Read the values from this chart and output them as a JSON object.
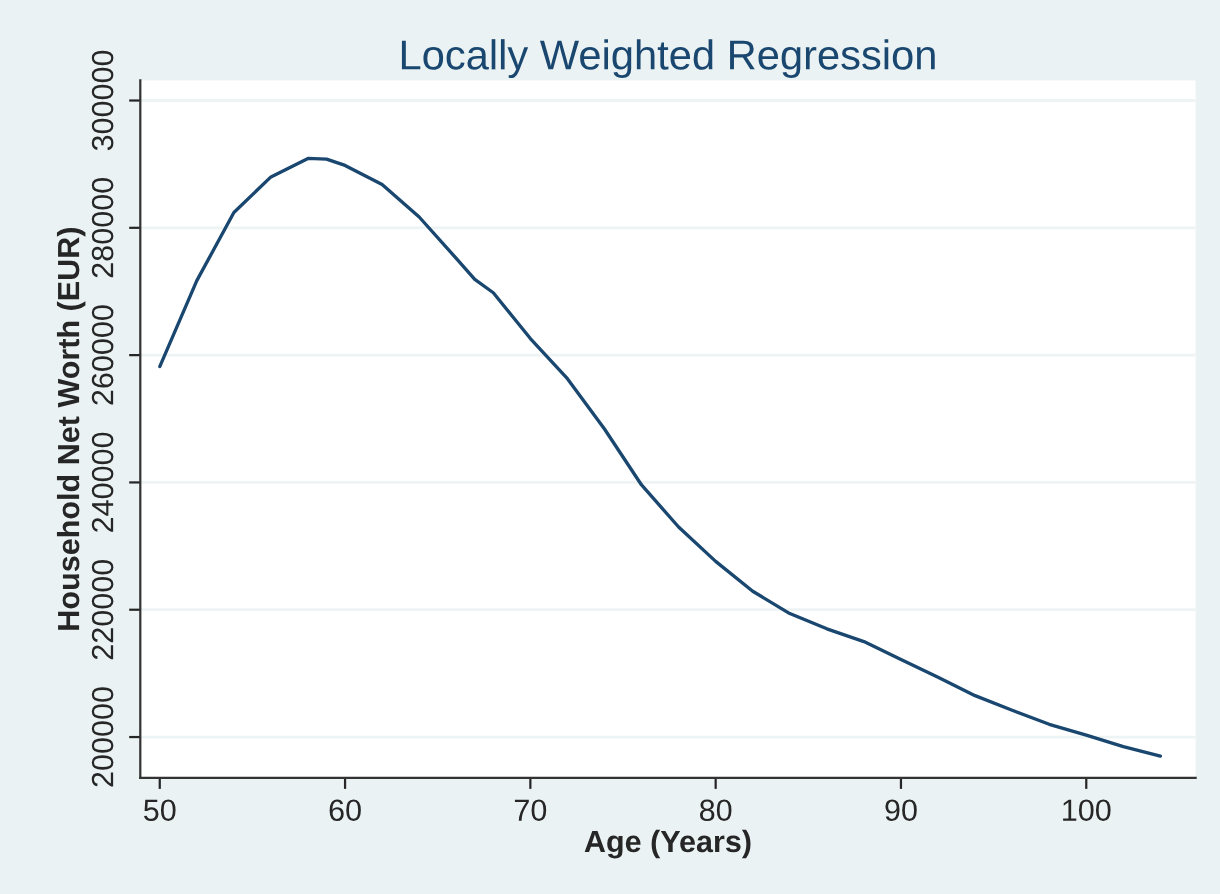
{
  "chart_data": {
    "type": "line",
    "title": "Locally Weighted Regression",
    "xlabel": "Age (Years)",
    "ylabel": "Household Net Worth (EUR)",
    "x": [
      50,
      52,
      54,
      56,
      58,
      59,
      60,
      62,
      64,
      66,
      67,
      68,
      70,
      72,
      74,
      76,
      78,
      80,
      82,
      84,
      86,
      88,
      90,
      92,
      94,
      96,
      98,
      100,
      102,
      104
    ],
    "series": [
      {
        "color": "#1a476f",
        "values": [
          258200,
          271700,
          282400,
          288000,
          290900,
          290800,
          289800,
          286800,
          281700,
          275200,
          271900,
          269800,
          262600,
          256300,
          248400,
          239600,
          233000,
          227600,
          222900,
          219400,
          217000,
          215000,
          212200,
          209400,
          206500,
          204200,
          202000,
          200300,
          198500,
          197000
        ]
      }
    ],
    "xlim": [
      48.95,
      105.9
    ],
    "ylim": [
      193600,
      303150
    ],
    "xticks": [
      50,
      60,
      70,
      80,
      90,
      100
    ],
    "yticks": [
      200000,
      220000,
      240000,
      260000,
      280000,
      300000
    ],
    "grid": "y",
    "legend": false,
    "marker": "none",
    "line_style": "solid"
  }
}
